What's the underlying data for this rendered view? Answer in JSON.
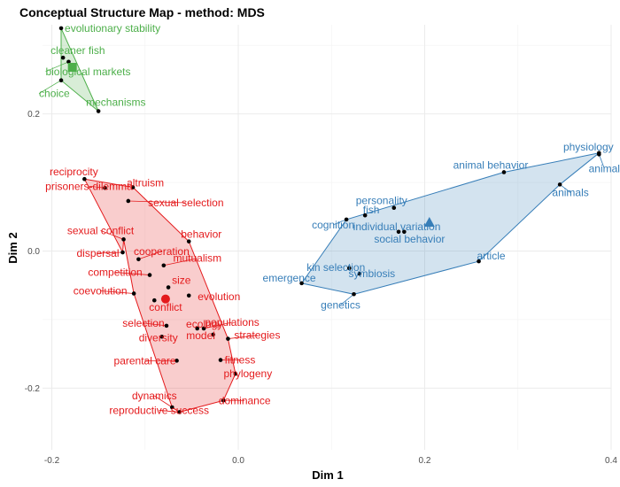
{
  "chart_data": {
    "type": "scatter",
    "title": "Conceptual Structure Map - method: MDS",
    "xlabel": "Dim 1",
    "ylabel": "Dim 2",
    "xlim": [
      -0.21,
      0.4
    ],
    "ylim": [
      -0.29,
      0.33
    ],
    "x_ticks": [
      -0.2,
      0.0,
      0.2,
      0.4
    ],
    "x_tick_labels": [
      "-0.2",
      "0.0",
      "0.2",
      "0.4"
    ],
    "y_ticks": [
      -0.2,
      0.0,
      0.2
    ],
    "y_tick_labels": [
      "-0.2",
      "0.0",
      "0.2"
    ],
    "grid": true,
    "clusters": [
      {
        "color": "#4daf4a",
        "fill": "#4daf4a",
        "centroid_shape": "square",
        "centroid": [
          -0.178,
          0.268
        ],
        "hull": [
          "evolutionary stability",
          "mechanisms",
          "choice"
        ],
        "points": [
          {
            "label": "evolutionary stability",
            "x": -0.19,
            "y": 0.325
          },
          {
            "label": "cleaner fish",
            "x": -0.188,
            "y": 0.282
          },
          {
            "label": "biological markets",
            "x": -0.182,
            "y": 0.276
          },
          {
            "label": "choice",
            "x": -0.19,
            "y": 0.249
          },
          {
            "label": "mechanisms",
            "x": -0.15,
            "y": 0.204
          }
        ]
      },
      {
        "color": "#e41a1c",
        "fill": "#e41a1c",
        "centroid_shape": "circle",
        "centroid": [
          -0.078,
          -0.07
        ],
        "hull": [
          "reciprocity",
          "altruism",
          "behavior",
          "strategies",
          "phylogeny",
          "dominance",
          "reproductive success",
          "dynamics",
          "coevolution",
          "sexual conflict",
          "dispersal"
        ],
        "points": [
          {
            "label": "reciprocity",
            "x": -0.165,
            "y": 0.105
          },
          {
            "label": "altruism",
            "x": -0.113,
            "y": 0.093
          },
          {
            "label": "prisoners-dilemma",
            "x": -0.143,
            "y": 0.092
          },
          {
            "label": "sexual selection",
            "x": -0.118,
            "y": 0.073
          },
          {
            "label": "sexual conflict",
            "x": -0.123,
            "y": 0.017
          },
          {
            "label": "behavior",
            "x": -0.053,
            "y": 0.014
          },
          {
            "label": "dispersal",
            "x": -0.124,
            "y": -0.002
          },
          {
            "label": "cooperation",
            "x": -0.107,
            "y": -0.012
          },
          {
            "label": "mutualism",
            "x": -0.08,
            "y": -0.021
          },
          {
            "label": "competition",
            "x": -0.095,
            "y": -0.035
          },
          {
            "label": "coevolution",
            "x": -0.112,
            "y": -0.062
          },
          {
            "label": "size",
            "x": -0.075,
            "y": -0.053
          },
          {
            "label": "evolution",
            "x": -0.053,
            "y": -0.065
          },
          {
            "label": "conflict",
            "x": -0.09,
            "y": -0.072
          },
          {
            "label": "selection",
            "x": -0.077,
            "y": -0.109
          },
          {
            "label": "ecology",
            "x": -0.044,
            "y": -0.113
          },
          {
            "label": "populations",
            "x": -0.037,
            "y": -0.113
          },
          {
            "label": "diversity",
            "x": -0.082,
            "y": -0.125
          },
          {
            "label": "strategies",
            "x": -0.011,
            "y": -0.128
          },
          {
            "label": "model",
            "x": -0.027,
            "y": -0.122
          },
          {
            "label": "fitness",
            "x": -0.019,
            "y": -0.159
          },
          {
            "label": "parental care",
            "x": -0.066,
            "y": -0.16
          },
          {
            "label": "phylogeny",
            "x": -0.003,
            "y": -0.179
          },
          {
            "label": "dominance",
            "x": -0.016,
            "y": -0.218
          },
          {
            "label": "dynamics",
            "x": -0.071,
            "y": -0.228
          },
          {
            "label": "reproductive success",
            "x": -0.063,
            "y": -0.235
          }
        ]
      },
      {
        "color": "#377eb8",
        "fill": "#377eb8",
        "centroid_shape": "triangle",
        "centroid": [
          0.205,
          0.042
        ],
        "hull": [
          "physiology",
          "animals",
          "article",
          "genetics",
          "emergence",
          "cognition",
          "animal behavior"
        ],
        "points": [
          {
            "label": "physiology",
            "x": 0.387,
            "y": 0.143
          },
          {
            "label": "animal",
            "x": 0.387,
            "y": 0.141
          },
          {
            "label": "animal behavior",
            "x": 0.285,
            "y": 0.115
          },
          {
            "label": "animals",
            "x": 0.345,
            "y": 0.097
          },
          {
            "label": "fish",
            "x": 0.136,
            "y": 0.052
          },
          {
            "label": "personality",
            "x": 0.167,
            "y": 0.063
          },
          {
            "label": "cognition",
            "x": 0.116,
            "y": 0.046
          },
          {
            "label": "individual variation",
            "x": 0.172,
            "y": 0.028
          },
          {
            "label": "social behavior",
            "x": 0.178,
            "y": 0.028
          },
          {
            "label": "kin selection",
            "x": 0.119,
            "y": -0.025
          },
          {
            "label": "article",
            "x": 0.258,
            "y": -0.015
          },
          {
            "label": "emergence",
            "x": 0.068,
            "y": -0.047
          },
          {
            "label": "symbiosis",
            "x": 0.13,
            "y": -0.033
          },
          {
            "label": "genetics",
            "x": 0.124,
            "y": -0.063
          }
        ]
      }
    ]
  },
  "label_offsets": {
    "evolutionary stability": [
      4,
      4,
      "start"
    ],
    "cleaner fish": [
      -14,
      -4,
      "start"
    ],
    "biological markets": [
      -26,
      15,
      "start"
    ],
    "choice": [
      -25,
      19,
      "start"
    ],
    "mechanisms": [
      -14,
      -6,
      "start"
    ],
    "reciprocity": [
      -12,
      -4,
      "middle"
    ],
    "altruism": [
      14,
      -1,
      "middle"
    ],
    "prisoners-dilemma": [
      -18,
      2,
      "middle"
    ],
    "sexual selection": [
      65,
      6,
      "middle"
    ],
    "sexual conflict": [
      -26,
      -6,
      "middle"
    ],
    "behavior": [
      14,
      -4,
      "middle"
    ],
    "dispersal": [
      -28,
      5,
      "middle"
    ],
    "cooperation": [
      26,
      -5,
      "middle"
    ],
    "mutualism": [
      38,
      -4,
      "middle"
    ],
    "competition": [
      -39,
      1,
      "middle"
    ],
    "coevolution": [
      -38,
      1,
      "middle"
    ],
    "size": [
      4,
      -4,
      "start"
    ],
    "evolution": [
      10,
      5,
      "start"
    ],
    "conflict": [
      -6,
      12,
      "start"
    ],
    "selection": [
      -26,
      1,
      "middle"
    ],
    "ecology": [
      8,
      -1,
      "middle"
    ],
    "populations": [
      32,
      -3,
      "middle"
    ],
    "diversity": [
      -4,
      5,
      "middle"
    ],
    "strategies": [
      33,
      0,
      "middle"
    ],
    "model": [
      -14,
      5,
      "middle"
    ],
    "fitness": [
      22,
      4,
      "middle"
    ],
    "parental care": [
      -36,
      4,
      "middle"
    ],
    "phylogeny": [
      14,
      4,
      "middle"
    ],
    "dominance": [
      24,
      4,
      "middle"
    ],
    "dynamics": [
      -20,
      -9,
      "middle"
    ],
    "reproductive success": [
      -23,
      2,
      "middle"
    ],
    "physiology": [
      -12,
      -3,
      "middle"
    ],
    "animal": [
      6,
      20,
      "middle"
    ],
    "animal behavior": [
      -15,
      -4,
      "middle"
    ],
    "animals": [
      12,
      13,
      "middle"
    ],
    "fish": [
      7,
      -2,
      "middle"
    ],
    "personality": [
      -14,
      -4,
      "middle"
    ],
    "cognition": [
      -15,
      10,
      "middle"
    ],
    "individual variation": [
      -2,
      -2,
      "middle"
    ],
    "social behavior": [
      6,
      12,
      "middle"
    ],
    "kin selection": [
      -15,
      3,
      "middle"
    ],
    "article": [
      14,
      -2,
      "middle"
    ],
    "emergence": [
      -14,
      -2,
      "middle"
    ],
    "symbiosis": [
      14,
      4,
      "middle"
    ],
    "genetics": [
      -15,
      16,
      "middle"
    ]
  }
}
